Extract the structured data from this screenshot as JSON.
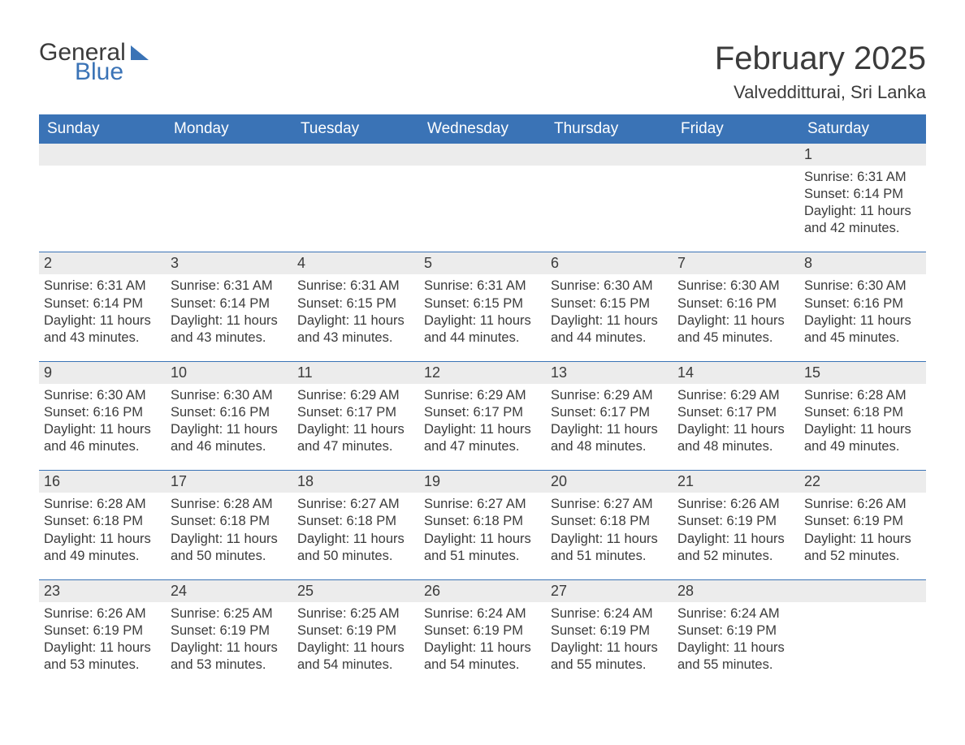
{
  "logo": {
    "text_a": "General",
    "text_b": "Blue"
  },
  "title": "February 2025",
  "location": "Valvedditturai, Sri Lanka",
  "colors": {
    "header_bg": "#3a73b6",
    "header_text": "#ffffff",
    "daynum_bg": "#ececec",
    "body_bg": "#ffffff",
    "text": "#3b3b3b",
    "rule": "#3a73b6"
  },
  "weekdays": [
    "Sunday",
    "Monday",
    "Tuesday",
    "Wednesday",
    "Thursday",
    "Friday",
    "Saturday"
  ],
  "weeks": [
    {
      "nums": [
        "",
        "",
        "",
        "",
        "",
        "",
        "1"
      ],
      "cells": [
        {},
        {},
        {},
        {},
        {},
        {},
        {
          "sunrise": "Sunrise: 6:31 AM",
          "sunset": "Sunset: 6:14 PM",
          "day1": "Daylight: 11 hours",
          "day2": "and 42 minutes."
        }
      ]
    },
    {
      "nums": [
        "2",
        "3",
        "4",
        "5",
        "6",
        "7",
        "8"
      ],
      "cells": [
        {
          "sunrise": "Sunrise: 6:31 AM",
          "sunset": "Sunset: 6:14 PM",
          "day1": "Daylight: 11 hours",
          "day2": "and 43 minutes."
        },
        {
          "sunrise": "Sunrise: 6:31 AM",
          "sunset": "Sunset: 6:14 PM",
          "day1": "Daylight: 11 hours",
          "day2": "and 43 minutes."
        },
        {
          "sunrise": "Sunrise: 6:31 AM",
          "sunset": "Sunset: 6:15 PM",
          "day1": "Daylight: 11 hours",
          "day2": "and 43 minutes."
        },
        {
          "sunrise": "Sunrise: 6:31 AM",
          "sunset": "Sunset: 6:15 PM",
          "day1": "Daylight: 11 hours",
          "day2": "and 44 minutes."
        },
        {
          "sunrise": "Sunrise: 6:30 AM",
          "sunset": "Sunset: 6:15 PM",
          "day1": "Daylight: 11 hours",
          "day2": "and 44 minutes."
        },
        {
          "sunrise": "Sunrise: 6:30 AM",
          "sunset": "Sunset: 6:16 PM",
          "day1": "Daylight: 11 hours",
          "day2": "and 45 minutes."
        },
        {
          "sunrise": "Sunrise: 6:30 AM",
          "sunset": "Sunset: 6:16 PM",
          "day1": "Daylight: 11 hours",
          "day2": "and 45 minutes."
        }
      ]
    },
    {
      "nums": [
        "9",
        "10",
        "11",
        "12",
        "13",
        "14",
        "15"
      ],
      "cells": [
        {
          "sunrise": "Sunrise: 6:30 AM",
          "sunset": "Sunset: 6:16 PM",
          "day1": "Daylight: 11 hours",
          "day2": "and 46 minutes."
        },
        {
          "sunrise": "Sunrise: 6:30 AM",
          "sunset": "Sunset: 6:16 PM",
          "day1": "Daylight: 11 hours",
          "day2": "and 46 minutes."
        },
        {
          "sunrise": "Sunrise: 6:29 AM",
          "sunset": "Sunset: 6:17 PM",
          "day1": "Daylight: 11 hours",
          "day2": "and 47 minutes."
        },
        {
          "sunrise": "Sunrise: 6:29 AM",
          "sunset": "Sunset: 6:17 PM",
          "day1": "Daylight: 11 hours",
          "day2": "and 47 minutes."
        },
        {
          "sunrise": "Sunrise: 6:29 AM",
          "sunset": "Sunset: 6:17 PM",
          "day1": "Daylight: 11 hours",
          "day2": "and 48 minutes."
        },
        {
          "sunrise": "Sunrise: 6:29 AM",
          "sunset": "Sunset: 6:17 PM",
          "day1": "Daylight: 11 hours",
          "day2": "and 48 minutes."
        },
        {
          "sunrise": "Sunrise: 6:28 AM",
          "sunset": "Sunset: 6:18 PM",
          "day1": "Daylight: 11 hours",
          "day2": "and 49 minutes."
        }
      ]
    },
    {
      "nums": [
        "16",
        "17",
        "18",
        "19",
        "20",
        "21",
        "22"
      ],
      "cells": [
        {
          "sunrise": "Sunrise: 6:28 AM",
          "sunset": "Sunset: 6:18 PM",
          "day1": "Daylight: 11 hours",
          "day2": "and 49 minutes."
        },
        {
          "sunrise": "Sunrise: 6:28 AM",
          "sunset": "Sunset: 6:18 PM",
          "day1": "Daylight: 11 hours",
          "day2": "and 50 minutes."
        },
        {
          "sunrise": "Sunrise: 6:27 AM",
          "sunset": "Sunset: 6:18 PM",
          "day1": "Daylight: 11 hours",
          "day2": "and 50 minutes."
        },
        {
          "sunrise": "Sunrise: 6:27 AM",
          "sunset": "Sunset: 6:18 PM",
          "day1": "Daylight: 11 hours",
          "day2": "and 51 minutes."
        },
        {
          "sunrise": "Sunrise: 6:27 AM",
          "sunset": "Sunset: 6:18 PM",
          "day1": "Daylight: 11 hours",
          "day2": "and 51 minutes."
        },
        {
          "sunrise": "Sunrise: 6:26 AM",
          "sunset": "Sunset: 6:19 PM",
          "day1": "Daylight: 11 hours",
          "day2": "and 52 minutes."
        },
        {
          "sunrise": "Sunrise: 6:26 AM",
          "sunset": "Sunset: 6:19 PM",
          "day1": "Daylight: 11 hours",
          "day2": "and 52 minutes."
        }
      ]
    },
    {
      "nums": [
        "23",
        "24",
        "25",
        "26",
        "27",
        "28",
        ""
      ],
      "cells": [
        {
          "sunrise": "Sunrise: 6:26 AM",
          "sunset": "Sunset: 6:19 PM",
          "day1": "Daylight: 11 hours",
          "day2": "and 53 minutes."
        },
        {
          "sunrise": "Sunrise: 6:25 AM",
          "sunset": "Sunset: 6:19 PM",
          "day1": "Daylight: 11 hours",
          "day2": "and 53 minutes."
        },
        {
          "sunrise": "Sunrise: 6:25 AM",
          "sunset": "Sunset: 6:19 PM",
          "day1": "Daylight: 11 hours",
          "day2": "and 54 minutes."
        },
        {
          "sunrise": "Sunrise: 6:24 AM",
          "sunset": "Sunset: 6:19 PM",
          "day1": "Daylight: 11 hours",
          "day2": "and 54 minutes."
        },
        {
          "sunrise": "Sunrise: 6:24 AM",
          "sunset": "Sunset: 6:19 PM",
          "day1": "Daylight: 11 hours",
          "day2": "and 55 minutes."
        },
        {
          "sunrise": "Sunrise: 6:24 AM",
          "sunset": "Sunset: 6:19 PM",
          "day1": "Daylight: 11 hours",
          "day2": "and 55 minutes."
        },
        {}
      ]
    }
  ]
}
